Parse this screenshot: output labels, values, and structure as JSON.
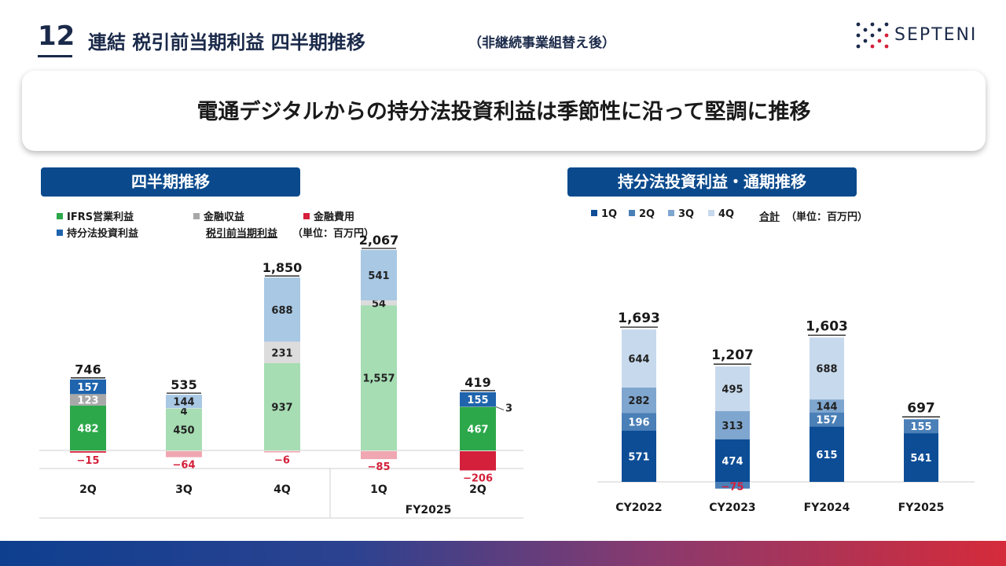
{
  "page": {
    "number": "12",
    "title": "連結 税引前当期利益 四半期推移",
    "subtitle": "（非継続事業組替え後）",
    "logo_text": "SEPTENI",
    "headline": "電通デジタルからの持分法投資利益は季節性に沿って堅調に推移"
  },
  "left": {
    "header": "四半期推移",
    "legend": {
      "ifrs": "IFRS営業利益",
      "fin_income": "金融収益",
      "fin_cost": "金融費用",
      "equity": "持分法投資利益",
      "pretax": "税引前当期利益",
      "unit": "（単位：百万円）"
    }
  },
  "right": {
    "header": "持分法投資利益・通期推移",
    "legend": {
      "q1": "1Q",
      "q2": "2Q",
      "q3": "3Q",
      "q4": "4Q",
      "total": "合計",
      "unit": "（単位：百万円）"
    }
  },
  "colors": {
    "ifrs": "#2ca84a",
    "ifrs_light": "#a6ddb3",
    "fin_income": "#a8a8a8",
    "fin_income_light": "#dcdcdc",
    "fin_cost": "#d4203a",
    "fin_cost_light": "#f0a7b1",
    "equity": "#1f64ad",
    "equity_light": "#a8c8e4",
    "q1": "#0c4d96",
    "q2": "#4a7fb7",
    "q3": "#7fa6cf",
    "q4": "#c7d9ec",
    "title": "#1b2a4a",
    "header_bg": "#0a4a8c"
  },
  "chart_data": [
    {
      "type": "bar",
      "stacked": true,
      "categories": [
        "2Q",
        "3Q",
        "4Q",
        "1Q",
        "2Q"
      ],
      "category_group": {
        "label": "FY2025",
        "indices": [
          3,
          4
        ]
      },
      "highlight": [
        0,
        4
      ],
      "series": [
        {
          "name": "IFRS営業利益",
          "key": "ifrs",
          "values": [
            482,
            450,
            937,
            1557,
            467
          ],
          "labels": [
            "482",
            "450",
            "937",
            "1,557",
            "467"
          ]
        },
        {
          "name": "金融収益",
          "key": "fin_income",
          "values": [
            123,
            4,
            231,
            54,
            3
          ],
          "labels": [
            "123",
            "4",
            "231",
            "54",
            "3"
          ]
        },
        {
          "name": "持分法投資利益",
          "key": "equity",
          "values": [
            157,
            144,
            688,
            541,
            155
          ],
          "labels": [
            "157",
            "144",
            "688",
            "541",
            "155"
          ]
        },
        {
          "name": "金融費用",
          "key": "fin_cost",
          "values": [
            -15,
            -64,
            -6,
            -85,
            -206
          ],
          "labels": [
            "−15",
            "−64",
            "−6",
            "−85",
            "−206"
          ]
        }
      ],
      "totals": [
        746,
        535,
        1850,
        2067,
        419
      ],
      "total_labels": [
        "746",
        "535",
        "1,850",
        "2,067",
        "419"
      ]
    },
    {
      "type": "bar",
      "stacked": true,
      "categories": [
        "CY2022",
        "CY2023",
        "FY2024",
        "FY2025"
      ],
      "series": [
        {
          "name": "1Q",
          "key": "q1",
          "values": [
            571,
            474,
            615,
            541
          ],
          "labels": [
            "571",
            "474",
            "615",
            "541"
          ]
        },
        {
          "name": "2Q",
          "key": "q2",
          "values": [
            196,
            -75,
            157,
            155
          ],
          "labels": [
            "196",
            "−75",
            "157",
            "155"
          ]
        },
        {
          "name": "3Q",
          "key": "q3",
          "values": [
            282,
            313,
            144,
            null
          ],
          "labels": [
            "282",
            "313",
            "144",
            ""
          ]
        },
        {
          "name": "4Q",
          "key": "q4",
          "values": [
            644,
            495,
            688,
            null
          ],
          "labels": [
            "644",
            "495",
            "688",
            ""
          ]
        }
      ],
      "totals": [
        1693,
        1207,
        1603,
        697
      ],
      "total_labels": [
        "1,693",
        "1,207",
        "1,603",
        "697"
      ]
    }
  ]
}
